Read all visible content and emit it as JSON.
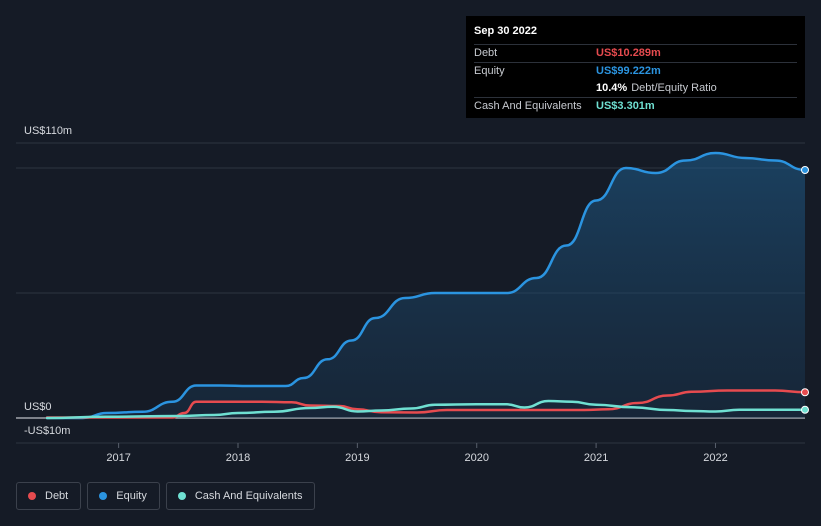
{
  "tooltip": {
    "date": "Sep 30 2022",
    "debt_label": "Debt",
    "debt_value": "US$10.289m",
    "equity_label": "Equity",
    "equity_value": "US$99.222m",
    "ratio_value": "10.4%",
    "ratio_label": "Debt/Equity Ratio",
    "cash_label": "Cash And Equivalents",
    "cash_value": "US$3.301m"
  },
  "legend": [
    {
      "label": "Debt",
      "color": "#e64b4f"
    },
    {
      "label": "Equity",
      "color": "#2b94e0"
    },
    {
      "label": "Cash And Equivalents",
      "color": "#6fe0d2"
    }
  ],
  "colors": {
    "debt": "#e64b4f",
    "equity": "#2b94e0",
    "cash": "#6fe0d2",
    "background": "#151b26"
  },
  "chart_data": {
    "type": "line",
    "ylim": [
      -10,
      110
    ],
    "y_tick_labels": [
      {
        "value": 110,
        "label": "US$110m"
      },
      {
        "value": 0,
        "label": "US$0"
      },
      {
        "value": -10,
        "label": "-US$10m"
      }
    ],
    "x_range": [
      2016.4,
      2022.75
    ],
    "x_tick_labels": [
      "2017",
      "2018",
      "2019",
      "2020",
      "2021",
      "2022"
    ],
    "gridlines": [
      110,
      100,
      50,
      0,
      -10
    ],
    "series": [
      {
        "name": "Equity",
        "key": "equity",
        "area": true,
        "points": [
          [
            2016.4,
            0
          ],
          [
            2016.7,
            0
          ],
          [
            2016.9,
            2
          ],
          [
            2017.2,
            2.5
          ],
          [
            2017.45,
            6.5
          ],
          [
            2017.65,
            13
          ],
          [
            2017.85,
            13
          ],
          [
            2018.1,
            12.8
          ],
          [
            2018.4,
            12.8
          ],
          [
            2018.55,
            16
          ],
          [
            2018.75,
            23.5
          ],
          [
            2018.95,
            31
          ],
          [
            2019.15,
            40
          ],
          [
            2019.4,
            48
          ],
          [
            2019.65,
            50
          ],
          [
            2020.0,
            50
          ],
          [
            2020.25,
            50
          ],
          [
            2020.5,
            56
          ],
          [
            2020.75,
            69
          ],
          [
            2021.0,
            87
          ],
          [
            2021.25,
            100
          ],
          [
            2021.5,
            98
          ],
          [
            2021.75,
            103
          ],
          [
            2022.0,
            106
          ],
          [
            2022.25,
            104
          ],
          [
            2022.5,
            103
          ],
          [
            2022.75,
            99.2
          ]
        ]
      },
      {
        "name": "Debt",
        "key": "debt",
        "points": [
          [
            2016.4,
            0.2
          ],
          [
            2017.45,
            0.2
          ],
          [
            2017.55,
            2
          ],
          [
            2017.65,
            6.5
          ],
          [
            2017.9,
            6.5
          ],
          [
            2018.2,
            6.5
          ],
          [
            2018.45,
            6.3
          ],
          [
            2018.6,
            5
          ],
          [
            2018.85,
            4.8
          ],
          [
            2019.0,
            3.5
          ],
          [
            2019.2,
            2.3
          ],
          [
            2019.5,
            2.2
          ],
          [
            2019.75,
            3.2
          ],
          [
            2020.0,
            3.2
          ],
          [
            2020.5,
            3.2
          ],
          [
            2020.9,
            3.2
          ],
          [
            2021.1,
            3.5
          ],
          [
            2021.35,
            6
          ],
          [
            2021.6,
            9
          ],
          [
            2021.8,
            10.5
          ],
          [
            2022.1,
            11
          ],
          [
            2022.5,
            11
          ],
          [
            2022.75,
            10.3
          ]
        ]
      },
      {
        "name": "Cash And Equivalents",
        "key": "cash",
        "points": [
          [
            2016.4,
            0
          ],
          [
            2016.9,
            0.5
          ],
          [
            2017.5,
            0.8
          ],
          [
            2017.8,
            1.2
          ],
          [
            2018.0,
            2
          ],
          [
            2018.3,
            2.5
          ],
          [
            2018.6,
            4
          ],
          [
            2018.8,
            4.5
          ],
          [
            2019.0,
            2.6
          ],
          [
            2019.2,
            3
          ],
          [
            2019.45,
            3.8
          ],
          [
            2019.65,
            5.3
          ],
          [
            2020.0,
            5.5
          ],
          [
            2020.25,
            5.5
          ],
          [
            2020.4,
            4.2
          ],
          [
            2020.6,
            6.8
          ],
          [
            2020.8,
            6.5
          ],
          [
            2021.0,
            5.3
          ],
          [
            2021.3,
            4.3
          ],
          [
            2021.6,
            3.2
          ],
          [
            2021.8,
            2.8
          ],
          [
            2022.0,
            2.6
          ],
          [
            2022.2,
            3.3
          ],
          [
            2022.5,
            3.3
          ],
          [
            2022.75,
            3.3
          ]
        ]
      }
    ]
  }
}
